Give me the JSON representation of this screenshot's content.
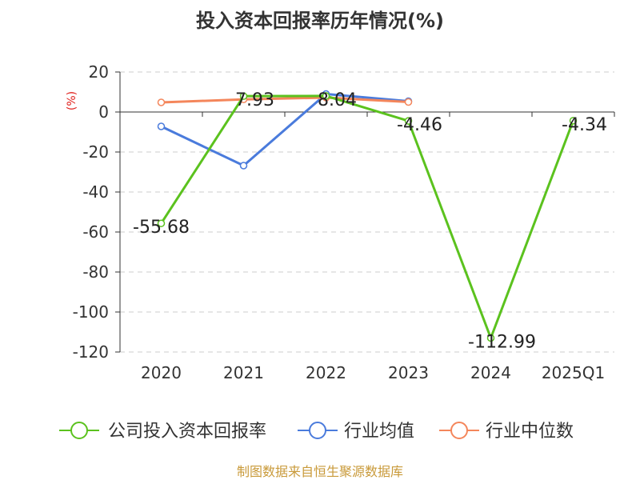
{
  "source_text": "制图数据来自恒生聚源数据库",
  "chart_data": {
    "type": "line",
    "title": "投入资本回报率历年情况(%)",
    "ylabel": "(%)",
    "categories": [
      "2020",
      "2021",
      "2022",
      "2023",
      "2024",
      "2025Q1"
    ],
    "yticks": [
      20,
      0,
      -20,
      -40,
      -60,
      -80,
      -100,
      -120
    ],
    "ylim": [
      -120,
      20
    ],
    "grid": true,
    "legend_position": "bottom",
    "series": [
      {
        "name": "公司投入资本回报率",
        "color": "#5bc21e",
        "values": [
          -55.68,
          7.93,
          8.04,
          -4.46,
          -112.99,
          -4.34
        ],
        "labels": [
          "-55.68",
          "7.93",
          "8.04",
          "-4.46",
          "-112.99",
          "-4.34"
        ]
      },
      {
        "name": "行业均值",
        "color": "#4a7bdc",
        "values": [
          -7.2,
          -26.8,
          9.0,
          5.4,
          null,
          null
        ]
      },
      {
        "name": "行业中位数",
        "color": "#f4865b",
        "values": [
          4.8,
          6.3,
          7.2,
          5.0,
          null,
          null
        ]
      }
    ]
  }
}
